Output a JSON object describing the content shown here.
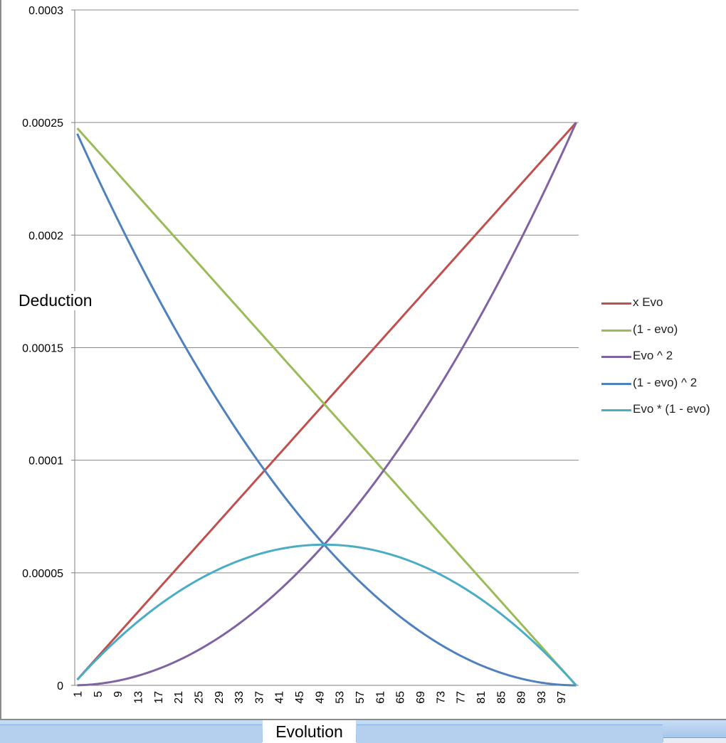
{
  "chart_data": {
    "type": "line",
    "xlabel": "Evolution",
    "ylabel": "Deduction",
    "x_start": 1,
    "x_end": 100,
    "x_tick_labels": [
      "1",
      "5",
      "9",
      "13",
      "17",
      "21",
      "25",
      "29",
      "33",
      "37",
      "41",
      "45",
      "49",
      "53",
      "57",
      "61",
      "65",
      "69",
      "73",
      "77",
      "81",
      "85",
      "89",
      "93",
      "97"
    ],
    "y_tick_labels": [
      "0.0003",
      "0.00025",
      "0.0002",
      "0.00015",
      "0.0001",
      "0.00005",
      "0"
    ],
    "ylim": [
      0,
      0.0003
    ],
    "y_step": 5e-05,
    "grid": true,
    "legend_position": "right",
    "series": [
      {
        "name": "x Evo",
        "color": "#c0504d",
        "formula": "x",
        "values_sampled": {
          "x": [
            1,
            25,
            50,
            75,
            100
          ],
          "y": [
            2.5e-06,
            6.25e-05,
            0.000125,
            0.0001875,
            0.00025
          ]
        }
      },
      {
        "name": "(1 - evo)",
        "color": "#9bbb59",
        "formula": "1-x",
        "values_sampled": {
          "x": [
            1,
            25,
            50,
            75,
            100
          ],
          "y": [
            0.0002475,
            0.0001875,
            0.000125,
            6.25e-05,
            0
          ]
        }
      },
      {
        "name": "Evo ^ 2",
        "color": "#8064a2",
        "formula": "x^2",
        "values_sampled": {
          "x": [
            1,
            25,
            50,
            75,
            100
          ],
          "y": [
            2.5e-08,
            1.56e-05,
            6.25e-05,
            0.0001406,
            0.00025
          ]
        }
      },
      {
        "name": "(1 - evo) ^ 2",
        "color": "#4f81bd",
        "formula": "(1-x)^2",
        "values_sampled": {
          "x": [
            1,
            25,
            50,
            75,
            100
          ],
          "y": [
            0.000245,
            0.0001406,
            6.25e-05,
            1.56e-05,
            0
          ]
        }
      },
      {
        "name": "Evo * (1 - evo)",
        "color": "#4bacc6",
        "formula": "x*(1-x)",
        "values_sampled": {
          "x": [
            1,
            25,
            50,
            75,
            100
          ],
          "y": [
            2.5e-06,
            4.69e-05,
            6.25e-05,
            4.69e-05,
            0
          ]
        }
      }
    ]
  }
}
